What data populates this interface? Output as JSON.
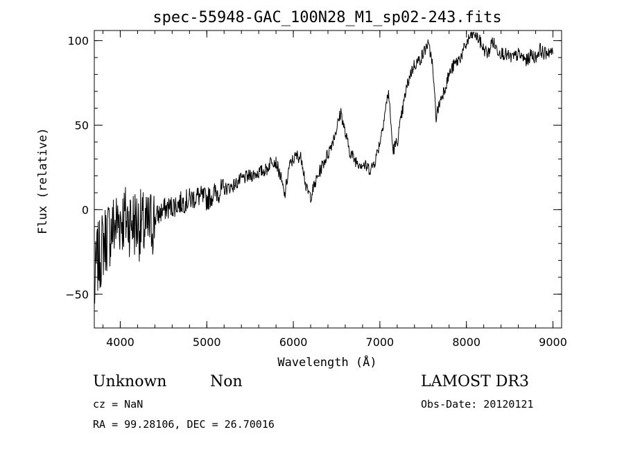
{
  "chart_data": {
    "type": "line",
    "title": "spec-55948-GAC_100N28_M1_sp02-243.fits",
    "xlabel": "Wavelength (Å)",
    "ylabel": "Flux (relative)",
    "xlim": [
      3700,
      9100
    ],
    "ylim": [
      -70,
      106
    ],
    "xticks": [
      4000,
      5000,
      6000,
      7000,
      8000,
      9000
    ],
    "yticks": [
      -50,
      0,
      50,
      100
    ],
    "x_minor_step": 200,
    "y_minor_step": 10,
    "series": [
      {
        "name": "spectrum",
        "x": [
          3700,
          3730,
          3760,
          3800,
          3850,
          3900,
          4000,
          4100,
          4200,
          4300,
          4400,
          4500,
          4600,
          4700,
          4800,
          4900,
          5000,
          5100,
          5200,
          5300,
          5400,
          5500,
          5600,
          5700,
          5750,
          5800,
          5850,
          5900,
          5950,
          6000,
          6050,
          6100,
          6150,
          6200,
          6250,
          6300,
          6350,
          6400,
          6450,
          6500,
          6550,
          6600,
          6650,
          6700,
          6750,
          6800,
          6850,
          6900,
          6950,
          7000,
          7050,
          7100,
          7150,
          7200,
          7250,
          7300,
          7350,
          7400,
          7450,
          7500,
          7550,
          7600,
          7650,
          7700,
          7750,
          7800,
          7850,
          7900,
          7950,
          8000,
          8050,
          8100,
          8150,
          8200,
          8250,
          8300,
          8350,
          8400,
          8450,
          8500,
          8550,
          8600,
          8650,
          8700,
          8750,
          8800,
          8850,
          8900,
          8950,
          9000
        ],
        "y": [
          -50,
          -30,
          -28,
          -20,
          -15,
          -12,
          -5,
          -6,
          -8,
          -12,
          -5,
          0,
          2,
          4,
          6,
          8,
          6,
          10,
          12,
          14,
          18,
          20,
          22,
          24,
          30,
          28,
          20,
          8,
          25,
          30,
          32,
          30,
          12,
          8,
          15,
          22,
          28,
          33,
          40,
          48,
          58,
          45,
          35,
          30,
          28,
          27,
          25,
          24,
          30,
          40,
          55,
          70,
          35,
          40,
          55,
          70,
          80,
          86,
          88,
          92,
          98,
          90,
          55,
          65,
          72,
          80,
          85,
          88,
          92,
          98,
          103,
          104,
          100,
          95,
          92,
          100,
          95,
          93,
          92,
          90,
          90,
          92,
          90,
          88,
          92,
          90,
          95,
          92,
          94,
          92
        ]
      }
    ]
  },
  "footer": {
    "object_class": "Unknown",
    "subclass": "Non",
    "survey": "LAMOST DR3",
    "cz": "cz = NaN",
    "obs_date": "Obs-Date: 20120121",
    "coords": "RA =  99.28106, DEC =  26.70016"
  }
}
